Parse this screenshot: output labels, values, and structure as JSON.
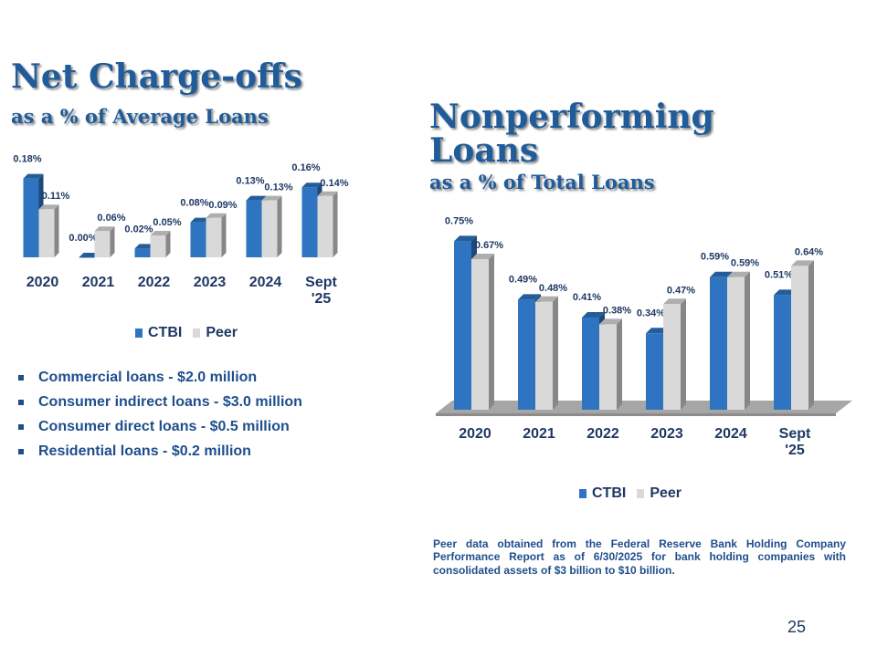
{
  "slide": {
    "page_number": "25",
    "left": {
      "title": "Net Charge-offs",
      "subtitle": "as a % of Average Loans",
      "bullets": [
        "Commercial loans - $2.0 million",
        "Consumer indirect loans - $3.0 million",
        "Consumer direct loans - $0.5 million",
        "Residential loans - $0.2 million"
      ]
    },
    "right": {
      "title_line1": "Nonperforming",
      "title_line2": "Loans",
      "subtitle": "as a % of Total Loans",
      "footnote": "Peer data obtained from the Federal Reserve Bank Holding Company Performance Report as of 6/30/2025 for bank holding companies with consolidated assets of $3 billion to $10 billion."
    }
  },
  "colors": {
    "ctbi": "#2e74c0",
    "peer": "#d9d9d9",
    "title": "#1f5c99",
    "text": "#1f4e8c"
  },
  "chart_data": [
    {
      "type": "bar",
      "title": "Net Charge-offs as a % of Average Loans",
      "categories": [
        "2020",
        "2021",
        "2022",
        "2023",
        "2024",
        "Sept '25"
      ],
      "series": [
        {
          "name": "CTBI",
          "values": [
            0.18,
            0.0,
            0.02,
            0.08,
            0.13,
            0.16
          ],
          "labels": [
            "0.18%",
            "0.00%",
            "0.02%",
            "0.08%",
            "0.13%",
            "0.16%"
          ]
        },
        {
          "name": "Peer",
          "values": [
            0.11,
            0.06,
            0.05,
            0.09,
            0.13,
            0.14
          ],
          "labels": [
            "0.11%",
            "0.06%",
            "0.05%",
            "0.09%",
            "0.13%",
            "0.14%"
          ]
        }
      ],
      "ylim": [
        0,
        0.2
      ],
      "legend": "bottom",
      "grid": false
    },
    {
      "type": "bar",
      "title": "Nonperforming Loans as a % of Total Loans",
      "categories": [
        "2020",
        "2021",
        "2022",
        "2023",
        "2024",
        "Sept '25"
      ],
      "series": [
        {
          "name": "CTBI",
          "values": [
            0.75,
            0.49,
            0.41,
            0.34,
            0.59,
            0.51
          ],
          "labels": [
            "0.75%",
            "0.49%",
            "0.41%",
            "0.34%",
            "0.59%",
            "0.51%"
          ]
        },
        {
          "name": "Peer",
          "values": [
            0.67,
            0.48,
            0.38,
            0.47,
            0.59,
            0.64
          ],
          "labels": [
            "0.67%",
            "0.48%",
            "0.38%",
            "0.47%",
            "0.59%",
            "0.64%"
          ]
        }
      ],
      "ylim": [
        0,
        0.8
      ],
      "legend": "bottom",
      "grid": false
    }
  ]
}
